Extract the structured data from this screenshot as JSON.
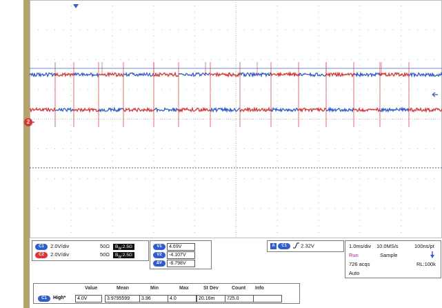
{
  "colors": {
    "ch1": "#2d5bd9",
    "ch2": "#e53030",
    "bezel": "#b4a46c",
    "grid": "#8c8c8c",
    "cursor": "#3c64d2"
  },
  "markers": {
    "ch2_ground": "2",
    "trigger_icon": "arrow-left-icon",
    "trigger_pos_icon": "triangle-down-icon"
  },
  "channels": [
    {
      "badge": "C1",
      "scale": "2.0V/div",
      "impedance": "50Ω",
      "bw_prefix": "B",
      "bw_sub": "W",
      "bw_value": ":2.5G"
    },
    {
      "badge": "C2",
      "scale": "2.0V/div",
      "impedance": "50Ω",
      "bw_prefix": "B",
      "bw_sub": "W",
      "bw_value": ":2.5G"
    }
  ],
  "cursors": [
    {
      "badge": "V1",
      "value": "4.69V"
    },
    {
      "badge": "V2",
      "value": "-4.107V"
    },
    {
      "badge": "ΔV",
      "value": "-8.798V"
    }
  ],
  "trigger": {
    "mode_badge": "A",
    "source_badge": "C1",
    "slope_icon": "rising-edge-icon",
    "level": "2.32V"
  },
  "acquisition": {
    "timebase": "1.0ms/div",
    "sample_rate": "10.0MS/s",
    "resolution": "100ns/pt",
    "state": "Run",
    "mode": "Sample",
    "acqs": "726 acqs",
    "record_length": "RL:100k",
    "trigger_mode": "Auto"
  },
  "measurements": {
    "headers": [
      "Value",
      "Mean",
      "Min",
      "Max",
      "St Dev",
      "Count",
      "Info"
    ],
    "rows": [
      {
        "badge": "C1",
        "name": "High*",
        "values": [
          "4.0V",
          "3.9795599",
          "3.96",
          "4.0",
          "20.16m",
          "725.0",
          ""
        ]
      }
    ]
  }
}
